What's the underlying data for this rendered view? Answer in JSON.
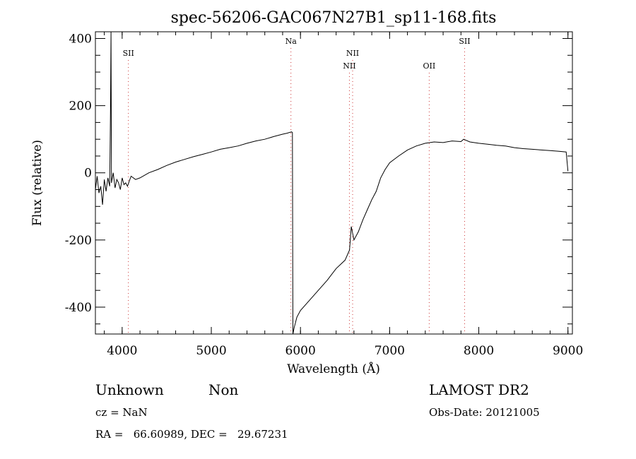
{
  "chart_data": {
    "type": "line",
    "title": "spec-56206-GAC067N27B1_sp11-168.fits",
    "xlabel": "Wavelength (Å)",
    "ylabel": "Flux (relative)",
    "xlim": [
      3700,
      9050
    ],
    "ylim": [
      -480,
      420
    ],
    "xticks": [
      4000,
      5000,
      6000,
      7000,
      8000,
      9000
    ],
    "yticks": [
      -400,
      -200,
      0,
      200,
      400
    ],
    "grid": false,
    "series": [
      {
        "points": [
          [
            3700,
            -50
          ],
          [
            3720,
            -10
          ],
          [
            3740,
            -60
          ],
          [
            3760,
            -40
          ],
          [
            3780,
            -95
          ],
          [
            3800,
            -20
          ],
          [
            3820,
            -55
          ],
          [
            3840,
            -15
          ],
          [
            3860,
            -40
          ],
          [
            3870,
            200
          ],
          [
            3875,
            420
          ],
          [
            3880,
            -30
          ],
          [
            3900,
            0
          ],
          [
            3920,
            -45
          ],
          [
            3940,
            -20
          ],
          [
            3960,
            -30
          ],
          [
            3980,
            -50
          ],
          [
            4000,
            -15
          ],
          [
            4020,
            -35
          ],
          [
            4040,
            -30
          ],
          [
            4060,
            -40
          ],
          [
            4080,
            -25
          ],
          [
            4100,
            -10
          ],
          [
            4150,
            -20
          ],
          [
            4200,
            -15
          ],
          [
            4300,
            0
          ],
          [
            4400,
            10
          ],
          [
            4500,
            22
          ],
          [
            4600,
            32
          ],
          [
            4700,
            40
          ],
          [
            4800,
            48
          ],
          [
            4900,
            55
          ],
          [
            5000,
            62
          ],
          [
            5100,
            70
          ],
          [
            5200,
            75
          ],
          [
            5300,
            80
          ],
          [
            5400,
            88
          ],
          [
            5500,
            95
          ],
          [
            5600,
            100
          ],
          [
            5700,
            108
          ],
          [
            5800,
            115
          ],
          [
            5850,
            118
          ],
          [
            5900,
            122
          ],
          [
            5910,
            120
          ],
          [
            5915,
            -480
          ],
          [
            5930,
            -460
          ],
          [
            5960,
            -430
          ],
          [
            6000,
            -410
          ],
          [
            6100,
            -380
          ],
          [
            6200,
            -350
          ],
          [
            6300,
            -320
          ],
          [
            6400,
            -285
          ],
          [
            6500,
            -260
          ],
          [
            6550,
            -230
          ],
          [
            6570,
            -160
          ],
          [
            6600,
            -200
          ],
          [
            6650,
            -175
          ],
          [
            6700,
            -140
          ],
          [
            6750,
            -110
          ],
          [
            6800,
            -80
          ],
          [
            6850,
            -55
          ],
          [
            6900,
            -15
          ],
          [
            6950,
            10
          ],
          [
            7000,
            30
          ],
          [
            7100,
            50
          ],
          [
            7200,
            68
          ],
          [
            7300,
            80
          ],
          [
            7400,
            88
          ],
          [
            7500,
            92
          ],
          [
            7600,
            90
          ],
          [
            7700,
            95
          ],
          [
            7800,
            93
          ],
          [
            7830,
            100
          ],
          [
            7900,
            92
          ],
          [
            8000,
            88
          ],
          [
            8100,
            85
          ],
          [
            8200,
            82
          ],
          [
            8300,
            80
          ],
          [
            8400,
            75
          ],
          [
            8500,
            72
          ],
          [
            8600,
            70
          ],
          [
            8700,
            68
          ],
          [
            8800,
            66
          ],
          [
            8900,
            64
          ],
          [
            8980,
            62
          ],
          [
            9000,
            5
          ]
        ]
      }
    ],
    "lines": [
      {
        "label": "SII",
        "x": 4070,
        "row": 1
      },
      {
        "label": "Na",
        "x": 5893,
        "row": 0
      },
      {
        "label": "NII",
        "x": 6549,
        "row": 2
      },
      {
        "label": "NII",
        "x": 6585,
        "row": 1
      },
      {
        "label": "OII",
        "x": 7444,
        "row": 2
      },
      {
        "label": "SII",
        "x": 7841,
        "row": 0
      }
    ]
  },
  "info": {
    "left_line1_a": "Unknown",
    "left_line1_b": "Non",
    "left_line2": "cz = NaN",
    "left_line3": "RA =   66.60989, DEC =   29.67231",
    "right_line1": "LAMOST DR2",
    "right_line2": "Obs-Date: 20121005"
  },
  "colors": {
    "line": "#000000",
    "marker_lines": "#cc3333"
  }
}
